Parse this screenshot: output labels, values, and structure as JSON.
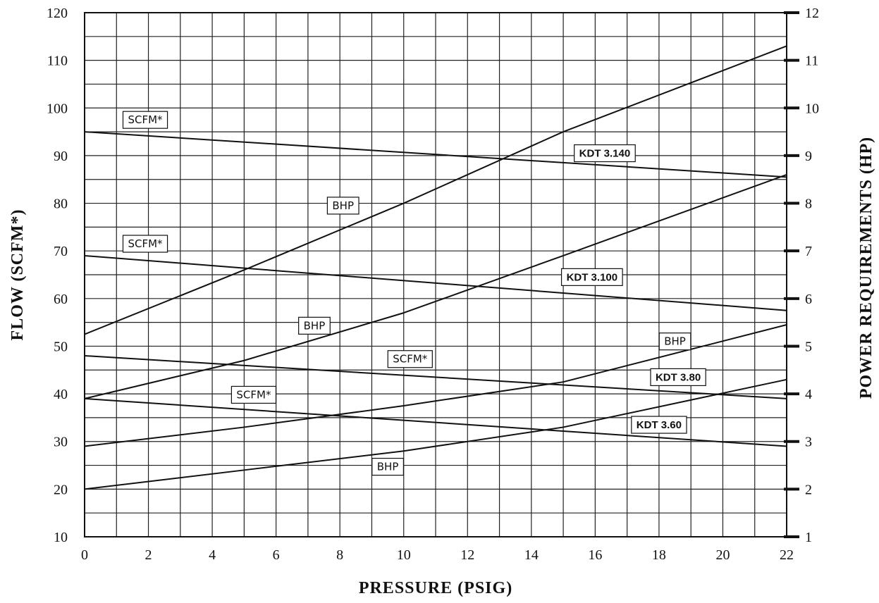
{
  "chart_data": {
    "type": "line",
    "xlabel": "PRESSURE (PSIG)",
    "ylabel": "FLOW  (SCFM*)",
    "y2label": "POWER REQUIREMENTS  (HP)",
    "xlim": [
      0,
      22
    ],
    "ylim": [
      10,
      120
    ],
    "y2lim": [
      1,
      12
    ],
    "x_ticks": [
      "0",
      "2",
      "4",
      "6",
      "8",
      "10",
      "12",
      "14",
      "16",
      "18",
      "20",
      "22"
    ],
    "y_ticks": [
      "10",
      "20",
      "30",
      "40",
      "50",
      "60",
      "70",
      "80",
      "90",
      "100",
      "110",
      "120"
    ],
    "y2_ticks": [
      "1",
      "2",
      "3",
      "4",
      "5",
      "6",
      "7",
      "8",
      "9",
      "10",
      "11",
      "12"
    ],
    "grid": true,
    "series": [
      {
        "name": "SCFM*",
        "model": "KDT 3.140",
        "axis": "left",
        "x": [
          0,
          22
        ],
        "y": [
          95,
          85.5
        ]
      },
      {
        "name": "BHP",
        "model": "KDT 3.140",
        "axis": "right",
        "x": [
          0,
          5,
          10,
          15,
          22
        ],
        "y": [
          5.25,
          6.6,
          8.0,
          9.5,
          11.3
        ]
      },
      {
        "name": "SCFM*",
        "model": "KDT 3.100",
        "axis": "left",
        "x": [
          0,
          22
        ],
        "y": [
          69,
          57.5
        ]
      },
      {
        "name": "BHP",
        "model": "KDT 3.100",
        "axis": "right",
        "x": [
          0,
          5,
          10,
          15,
          22
        ],
        "y": [
          3.9,
          4.7,
          5.7,
          6.9,
          8.6
        ]
      },
      {
        "name": "SCFM*",
        "model": "KDT 3.80",
        "axis": "left",
        "x": [
          0,
          22
        ],
        "y": [
          48,
          39
        ]
      },
      {
        "name": "BHP",
        "model": "KDT 3.80",
        "axis": "right",
        "x": [
          0,
          5,
          10,
          15,
          22
        ],
        "y": [
          2.9,
          3.3,
          3.75,
          4.25,
          5.45
        ]
      },
      {
        "name": "SCFM*",
        "model": "KDT 3.60",
        "axis": "left",
        "x": [
          0,
          22
        ],
        "y": [
          39,
          29
        ]
      },
      {
        "name": "BHP",
        "model": "KDT 3.60",
        "axis": "right",
        "x": [
          0,
          5,
          10,
          15,
          22
        ],
        "y": [
          2.0,
          2.4,
          2.8,
          3.3,
          4.3
        ]
      }
    ],
    "labels": [
      {
        "text": "SCFM*",
        "x": 1.9,
        "y": 97.5,
        "bold": false
      },
      {
        "text": "KDT 3.140",
        "x": 16.3,
        "y": 90.5,
        "bold": true
      },
      {
        "text": "BHP",
        "x": 8.1,
        "y": 79.5,
        "bold": false
      },
      {
        "text": "SCFM*",
        "x": 1.9,
        "y": 71.5,
        "bold": false
      },
      {
        "text": "KDT 3.100",
        "x": 15.9,
        "y": 64.5,
        "bold": true
      },
      {
        "text": "BHP",
        "x": 7.2,
        "y": 54.3,
        "bold": false
      },
      {
        "text": "BHP",
        "x": 18.5,
        "y": 51.0,
        "bold": false
      },
      {
        "text": "SCFM*",
        "x": 10.2,
        "y": 47.3,
        "bold": false
      },
      {
        "text": "KDT 3.80",
        "x": 18.6,
        "y": 43.5,
        "bold": true
      },
      {
        "text": "SCFM*",
        "x": 5.3,
        "y": 39.8,
        "bold": false
      },
      {
        "text": "KDT 3.60",
        "x": 18.0,
        "y": 33.5,
        "bold": true
      },
      {
        "text": "BHP",
        "x": 9.5,
        "y": 24.7,
        "bold": false
      }
    ]
  }
}
